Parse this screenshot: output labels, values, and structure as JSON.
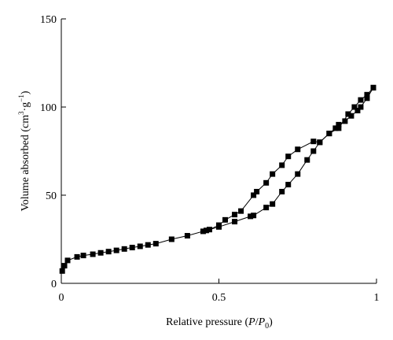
{
  "chart_data": {
    "type": "line",
    "title": "",
    "xlabel": "Relative pressure (P/P0)",
    "xlabel_parts": {
      "prefix": "Relative pressure (",
      "p": "P",
      "slash": "/",
      "p0": "P",
      "sub0": "0",
      "suffix": ")"
    },
    "ylabel": "Volume absorbed (cm3·g−1)",
    "ylabel_parts": {
      "prefix": "Volume absorbed (cm",
      "sup3": "3",
      "mid": "·g",
      "supneg1": "−1",
      "suffix": ")"
    },
    "xlim": [
      0,
      1
    ],
    "ylim": [
      0,
      150
    ],
    "xticks": [
      0,
      0.5,
      1
    ],
    "xtick_labels": [
      "0",
      "0.5",
      "1"
    ],
    "yticks": [
      0,
      50,
      100,
      150
    ],
    "ytick_labels": [
      "0",
      "50",
      "100",
      "150"
    ],
    "grid": false,
    "legend": "none",
    "marker": "square",
    "color": "#000000",
    "series": [
      {
        "x": [
          0.003,
          0.01,
          0.02,
          0.05,
          0.07,
          0.1,
          0.125,
          0.15,
          0.175,
          0.2,
          0.225,
          0.25,
          0.275,
          0.3,
          0.35,
          0.4,
          0.45,
          0.46,
          0.5,
          0.55,
          0.6,
          0.61,
          0.65,
          0.67,
          0.7,
          0.72,
          0.75,
          0.78,
          0.8,
          0.82,
          0.85,
          0.87,
          0.88,
          0.9,
          0.92,
          0.94,
          0.95,
          0.97,
          0.99
        ],
        "y": [
          7,
          10,
          13,
          15,
          15.8,
          16.5,
          17.3,
          18,
          18.7,
          19.5,
          20.3,
          21,
          21.8,
          22.5,
          25,
          27,
          29.5,
          30,
          32,
          35,
          38,
          38.5,
          43,
          45,
          52,
          56,
          62,
          70,
          75,
          80,
          85,
          88,
          90,
          92,
          95,
          98,
          100,
          105,
          111
        ]
      },
      {
        "x": [
          0.99,
          0.97,
          0.95,
          0.93,
          0.91,
          0.88,
          0.85,
          0.82,
          0.8,
          0.75,
          0.72,
          0.7,
          0.67,
          0.65,
          0.62,
          0.61,
          0.57,
          0.55,
          0.52,
          0.5,
          0.47
        ],
        "y": [
          111,
          107,
          104,
          100,
          96,
          88,
          85,
          80,
          80.5,
          76,
          72,
          67,
          62,
          57,
          52,
          50,
          41,
          39,
          36,
          33,
          30.5
        ]
      }
    ]
  }
}
